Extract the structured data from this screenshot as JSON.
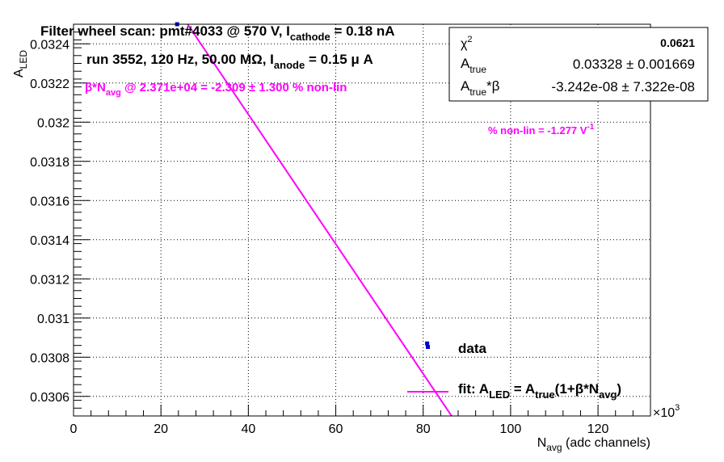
{
  "chart_data": {
    "type": "scatter",
    "title": {
      "main": "Filter wheel scan: pmt#4033 @   570 V, I",
      "sub": "cathode",
      "tail": " = 0.18 nA"
    },
    "subtitle": {
      "main": "run 3552, 120 Hz, 50.00 MΩ, I",
      "sub": "anode",
      "tail": " = 0.15 μ A"
    },
    "nonlin_annotation": {
      "beta": "β*N",
      "sub": "avg",
      "tail": " @ 2.371e+04 = -2.309 ± 1.300 % non-lin"
    },
    "volt_annotation": {
      "text": "% non-lin = -1.277 V",
      "sup": "-1"
    },
    "xlabel": {
      "main": "N",
      "sub": "avg",
      "tail": " (adc channels)"
    },
    "ylabel": {
      "main": "A",
      "sub": "LED"
    },
    "x_multiplier": "×10",
    "x_multiplier_exp": "3",
    "xlim": [
      0,
      132
    ],
    "ylim": [
      0.0305,
      0.0325
    ],
    "x_ticks": [
      0,
      20,
      40,
      60,
      80,
      100,
      120
    ],
    "x_tick_labels": [
      "0",
      "20",
      "40",
      "60",
      "80",
      "100",
      "120"
    ],
    "y_ticks": [
      0.0306,
      0.0308,
      0.031,
      0.0312,
      0.0314,
      0.0316,
      0.0318,
      0.032,
      0.0322,
      0.0324
    ],
    "y_tick_labels": [
      "0.0306",
      "0.0308",
      "0.031",
      "0.0312",
      "0.0314",
      "0.0316",
      "0.0318",
      "0.032",
      "0.0322",
      "0.0324"
    ],
    "grid": true,
    "series": [
      {
        "name": "data",
        "type": "points",
        "color": "#0000cc",
        "x": [
          23.7,
          80.9
        ],
        "y": [
          0.0325,
          0.03087
        ]
      }
    ],
    "fit": {
      "label": {
        "pre": "fit: A",
        "sub1": "LED",
        "mid": " = A",
        "sub2": "true",
        "post": "(1+β*N",
        "sub3": "avg",
        "end": ")"
      },
      "color": "#ff00ff",
      "x": [
        26.1,
        86.5
      ],
      "y": [
        0.0325,
        0.0305
      ]
    },
    "stats": {
      "rows": [
        {
          "label": "χ",
          "label_sup": "2",
          "value": "0.0621"
        },
        {
          "label": "A",
          "label_sub": "true",
          "value": "0.03328 ± 0.001669"
        },
        {
          "label": "A",
          "label_sub": "true",
          "label_tail": "*β",
          "value": "-3.242e-08 ± 7.322e-08"
        }
      ]
    },
    "legend": {
      "data_label": "data",
      "placement": "bottom-right"
    },
    "colors": {
      "annotation": "#ff00ff",
      "point": "#0000cc",
      "axis": "#000000"
    }
  }
}
